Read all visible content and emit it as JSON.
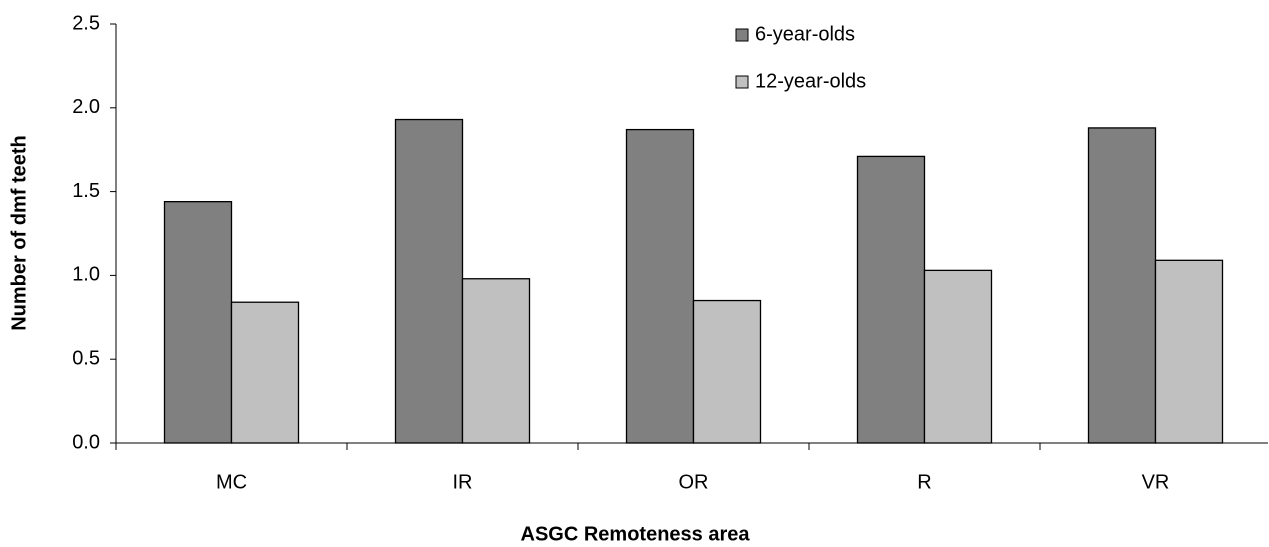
{
  "chart_data": {
    "type": "bar",
    "x_label": "ASGC Remoteness area",
    "y_label": "Number of dmf teeth",
    "categories": [
      "MC",
      "IR",
      "OR",
      "R",
      "VR"
    ],
    "series": [
      {
        "name": "6-year-olds",
        "color": "#808080",
        "values": [
          1.44,
          1.93,
          1.87,
          1.71,
          1.88
        ]
      },
      {
        "name": "12-year-olds",
        "color": "#c0c0c0",
        "values": [
          0.84,
          0.98,
          0.85,
          1.03,
          1.09
        ]
      }
    ],
    "ylim": [
      0,
      2.5
    ],
    "yticks": [
      {
        "value": 0,
        "label": "0.0"
      },
      0.5,
      {
        "value": 1,
        "label": "1.0"
      },
      1.5,
      {
        "value": 2,
        "label": "2.0"
      },
      2.5
    ],
    "grid": false,
    "legend": "top-right"
  }
}
